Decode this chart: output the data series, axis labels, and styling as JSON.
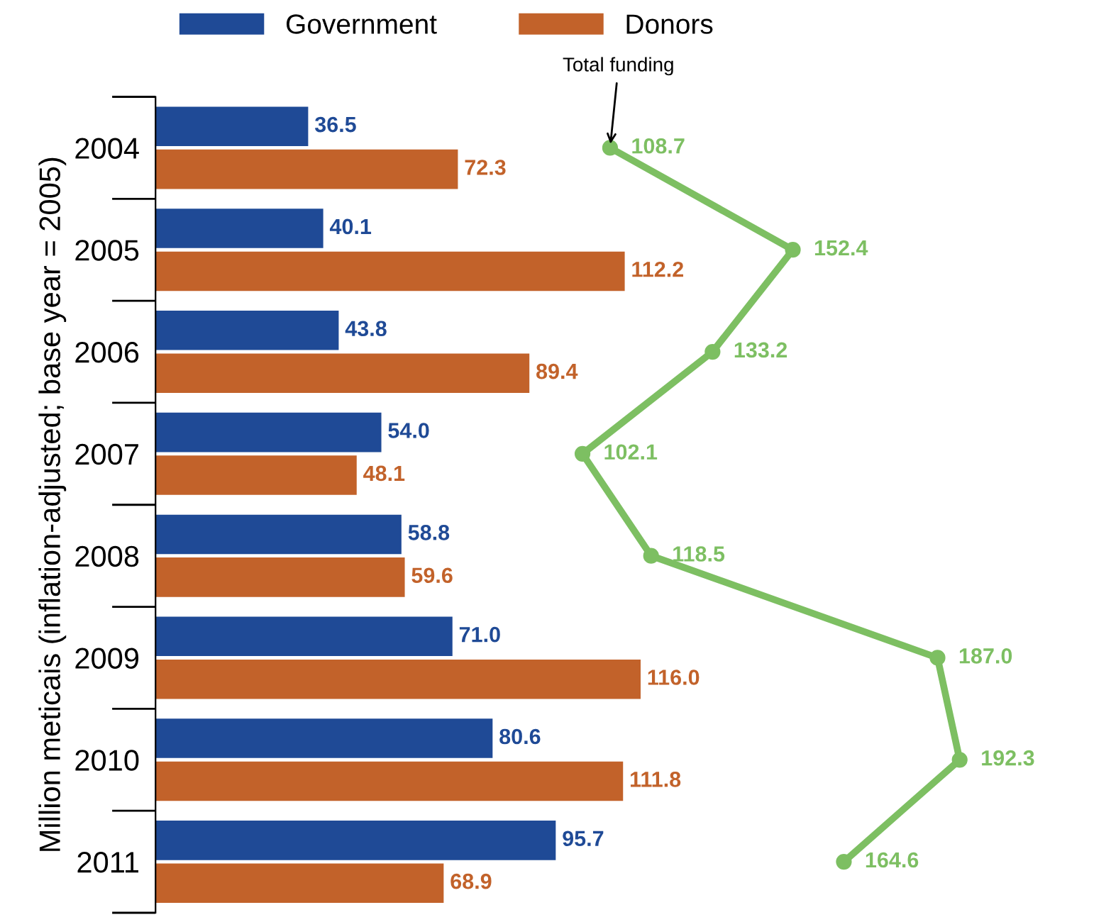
{
  "chart_data": {
    "type": "bar",
    "orientation": "horizontal",
    "ylabel": "Million meticais (inflation-adjusted; base year = 2005)",
    "categories": [
      "2004",
      "2005",
      "2006",
      "2007",
      "2008",
      "2009",
      "2010",
      "2011"
    ],
    "series": [
      {
        "name": "Government",
        "color": "#1f4a96",
        "values": [
          36.5,
          40.1,
          43.8,
          54,
          58.8,
          71,
          80.6,
          95.7
        ],
        "value_labels": [
          "36.5",
          "40.1",
          "43.8",
          "54.0",
          "58.8",
          "71.0",
          "80.6",
          "95.7"
        ]
      },
      {
        "name": "Donors",
        "color": "#c2622a",
        "values": [
          72.3,
          112.2,
          89.4,
          48.1,
          59.6,
          116,
          111.8,
          68.9
        ],
        "value_labels": [
          "72.3",
          "112.2",
          "89.4",
          "48.1",
          "59.6",
          "116.0",
          "111.8",
          "68.9"
        ]
      },
      {
        "type": "line",
        "color": "#7dbf62",
        "marker": "circle",
        "values": [
          108.7,
          152.4,
          133.2,
          102.1,
          118.5,
          187,
          192.3,
          164.6
        ],
        "value_labels": [
          "108.7",
          "152.4",
          "133.2",
          "102.1",
          "118.5",
          "187.0",
          "192.3",
          "164.6"
        ]
      }
    ],
    "annotations": [
      {
        "text": "Total funding",
        "x": 108.7,
        "y": "2004"
      }
    ],
    "legend": "top left",
    "tick_labels": "y",
    "grid": false
  }
}
